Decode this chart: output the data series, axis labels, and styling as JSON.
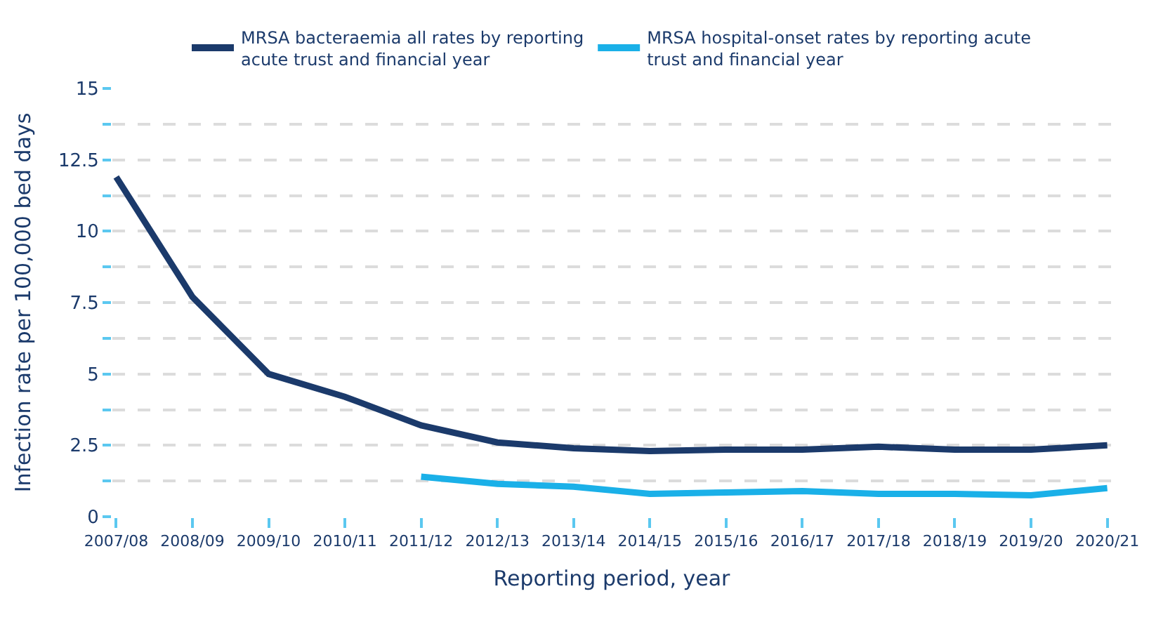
{
  "chart_data": {
    "type": "line",
    "xlabel": "Reporting period, year",
    "ylabel": "Infection rate per 100,000 bed days",
    "categories": [
      "2007/08",
      "2008/09",
      "2009/10",
      "2010/11",
      "2011/12",
      "2012/13",
      "2013/14",
      "2014/15",
      "2015/16",
      "2016/17",
      "2017/18",
      "2018/19",
      "2019/20",
      "2020/21"
    ],
    "series": [
      {
        "name": "MRSA bacteraemia all rates by reporting acute trust and financial year",
        "color": "#1b3a6b",
        "values": [
          11.9,
          7.7,
          5.0,
          4.2,
          3.2,
          2.6,
          2.4,
          2.3,
          2.35,
          2.35,
          2.45,
          2.35,
          2.35,
          2.5
        ]
      },
      {
        "name": "MRSA hospital-onset rates by reporting acute trust and financial year",
        "color": "#1ab0e8",
        "values": [
          null,
          null,
          null,
          null,
          1.4,
          1.15,
          1.05,
          0.8,
          0.85,
          0.9,
          0.8,
          0.8,
          0.75,
          1.0
        ]
      }
    ],
    "ylim": [
      0,
      15
    ],
    "yticks": [
      0,
      {
        "value": 1.25,
        "label": null
      },
      2.5,
      {
        "value": 3.75,
        "label": null
      },
      5,
      {
        "value": 6.25,
        "label": null
      },
      7.5,
      {
        "value": 8.75,
        "label": null
      },
      10,
      {
        "value": 11.25,
        "label": null
      },
      12.5,
      {
        "value": 13.75,
        "label": null
      },
      15
    ],
    "grid": "y",
    "legend": "top",
    "marker": "none",
    "line_style": "solid"
  }
}
